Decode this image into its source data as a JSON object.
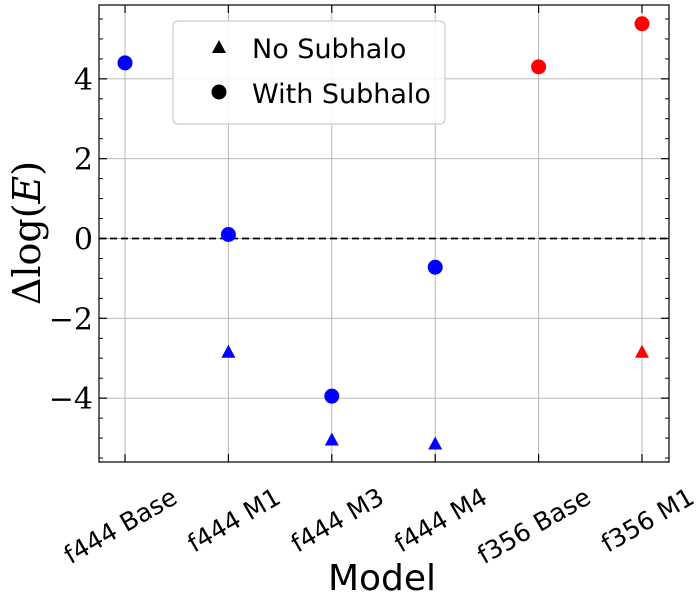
{
  "chart_data": {
    "type": "scatter",
    "title": "",
    "xlabel": "Model",
    "ylabel": "Δlog(E)",
    "ylabel_parts": {
      "delta": "Δ",
      "log": "log",
      "open": "(",
      "var": "E",
      "close": ")"
    },
    "categories": [
      "f444 Base",
      "f444 M1",
      "f444 M3",
      "f444 M4",
      "f356 Base",
      "f356 M1"
    ],
    "ylim": [
      -5.6,
      5.85
    ],
    "yticks": [
      -4,
      -2,
      0,
      2,
      4
    ],
    "ytick_labels": [
      "−4",
      "−2",
      "0",
      "2",
      "4"
    ],
    "grid": true,
    "reference_line": {
      "y": 0,
      "style": "dashed",
      "color": "#000000"
    },
    "legend": {
      "placement": "top-center",
      "entries": [
        {
          "label": "No Subhalo",
          "marker": "triangle"
        },
        {
          "label": "With Subhalo",
          "marker": "circle"
        }
      ]
    },
    "series": [
      {
        "name": "No Subhalo",
        "marker": "triangle",
        "points": [
          {
            "category": "f444 M1",
            "y": -2.85,
            "color": "#0000ff"
          },
          {
            "category": "f444 M3",
            "y": -5.05,
            "color": "#0000ff"
          },
          {
            "category": "f444 M4",
            "y": -5.15,
            "color": "#0000ff"
          },
          {
            "category": "f356 M1",
            "y": -2.85,
            "color": "#ff0000"
          }
        ]
      },
      {
        "name": "With Subhalo",
        "marker": "circle",
        "points": [
          {
            "category": "f444 Base",
            "y": 4.4,
            "color": "#0000ff"
          },
          {
            "category": "f444 M1",
            "y": 0.1,
            "color": "#0000ff"
          },
          {
            "category": "f444 M3",
            "y": -3.95,
            "color": "#0000ff"
          },
          {
            "category": "f444 M4",
            "y": -0.72,
            "color": "#0000ff"
          },
          {
            "category": "f356 Base",
            "y": 4.3,
            "color": "#ff0000"
          },
          {
            "category": "f356 M1",
            "y": 5.38,
            "color": "#ff0000"
          }
        ]
      }
    ]
  }
}
